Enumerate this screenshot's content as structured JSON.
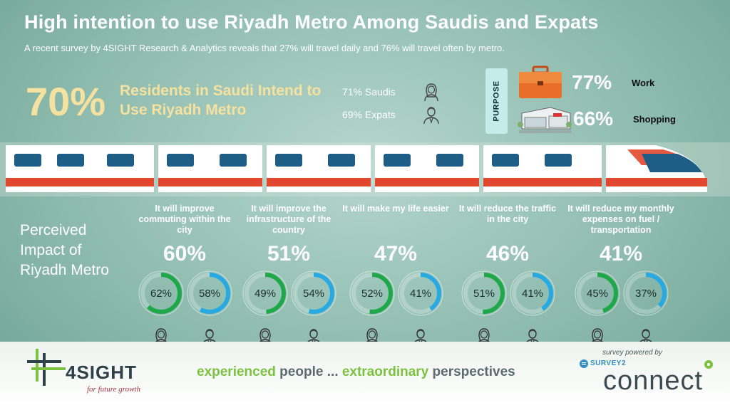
{
  "title": "High intention to use Riyadh Metro Among Saudis and Expats",
  "subtitle": "A recent survey by 4SIGHT Research & Analytics reveals that 27% will travel daily and 76% will travel often by metro.",
  "headline": {
    "pct": "70%",
    "desc": "Residents in Saudi Intend to Use Riyadh Metro"
  },
  "nationality": [
    {
      "label": "71% Saudis",
      "icon": "saudi-person-icon"
    },
    {
      "label": "69% Expats",
      "icon": "expat-person-icon"
    }
  ],
  "purpose": {
    "label": "PURPOSE",
    "items": [
      {
        "pct": "77%",
        "label": "Work",
        "icon": "briefcase-icon"
      },
      {
        "pct": "66%",
        "label": "Shopping",
        "icon": "mall-icon"
      }
    ]
  },
  "impact_heading": "Perceived Impact of Riyadh Metro",
  "impacts": [
    {
      "question": "It will improve commuting within the city",
      "total": "60%",
      "saudi": "62%",
      "expat": "58%",
      "saudi_value": 62,
      "expat_value": 58
    },
    {
      "question": "It will improve the infrastructure of the country",
      "total": "51%",
      "saudi": "49%",
      "expat": "54%",
      "saudi_value": 49,
      "expat_value": 54
    },
    {
      "question": "It will make my life easier",
      "total": "47%",
      "saudi": "52%",
      "expat": "41%",
      "saudi_value": 52,
      "expat_value": 41
    },
    {
      "question": "It will reduce the traffic in the city",
      "total": "46%",
      "saudi": "51%",
      "expat": "41%",
      "saudi_value": 51,
      "expat_value": 41
    },
    {
      "question": "It will reduce my monthly expenses on fuel / transportation",
      "total": "41%",
      "saudi": "45%",
      "expat": "37%",
      "saudi_value": 45,
      "expat_value": 37
    }
  ],
  "colors": {
    "saudi": "#1fa84a",
    "expat": "#29a9e1",
    "accent": "#f6e2a0",
    "train_red": "#e2472f",
    "train_blue": "#1e5e86"
  },
  "footer": {
    "logo": "4SIGHT",
    "logo_tag": "for future growth",
    "tagline_1": "experienced",
    "tagline_2": " people ... ",
    "tagline_3": "extraordinary",
    "tagline_4": " perspectives",
    "powered": "survey powered by",
    "s2": "SURVEY2",
    "connect": "connect"
  }
}
